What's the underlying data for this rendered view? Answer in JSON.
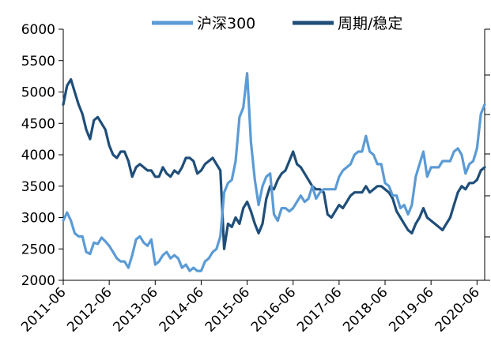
{
  "chart_data": {
    "type": "line",
    "title": "",
    "xlabel": "",
    "ylabel": "",
    "x_ticks": [
      "2011-06",
      "2012-06",
      "2013-06",
      "2014-06",
      "2015-06",
      "2016-06",
      "2017-06",
      "2018-06",
      "2019-06",
      "2020-06"
    ],
    "x_range": [
      "2011-06",
      "2020-08"
    ],
    "y_left": {
      "range": [
        2000,
        6000
      ],
      "ticks": [
        "6000",
        "5500",
        "5000",
        "4500",
        "4000",
        "3500",
        "3000",
        "2500",
        "2000"
      ]
    },
    "y_right": {
      "ticks_visible": false
    },
    "legend": {
      "position": "top"
    },
    "grid": false,
    "series": [
      {
        "name": "沪深300",
        "axis": "left",
        "color": "#5b9bd5",
        "points": [
          [
            "2011-06",
            2950
          ],
          [
            "2011-07",
            3080
          ],
          [
            "2011-08",
            2950
          ],
          [
            "2011-09",
            2750
          ],
          [
            "2011-10",
            2700
          ],
          [
            "2011-11",
            2700
          ],
          [
            "2011-12",
            2450
          ],
          [
            "2012-01",
            2420
          ],
          [
            "2012-02",
            2600
          ],
          [
            "2012-03",
            2580
          ],
          [
            "2012-04",
            2680
          ],
          [
            "2012-05",
            2620
          ],
          [
            "2012-06",
            2550
          ],
          [
            "2012-07",
            2450
          ],
          [
            "2012-08",
            2350
          ],
          [
            "2012-09",
            2300
          ],
          [
            "2012-10",
            2300
          ],
          [
            "2012-11",
            2200
          ],
          [
            "2012-12",
            2400
          ],
          [
            "2013-01",
            2650
          ],
          [
            "2013-02",
            2700
          ],
          [
            "2013-03",
            2600
          ],
          [
            "2013-04",
            2550
          ],
          [
            "2013-05",
            2650
          ],
          [
            "2013-06",
            2250
          ],
          [
            "2013-07",
            2300
          ],
          [
            "2013-08",
            2400
          ],
          [
            "2013-09",
            2450
          ],
          [
            "2013-10",
            2350
          ],
          [
            "2013-11",
            2400
          ],
          [
            "2013-12",
            2350
          ],
          [
            "2014-01",
            2200
          ],
          [
            "2014-02",
            2250
          ],
          [
            "2014-03",
            2150
          ],
          [
            "2014-04",
            2200
          ],
          [
            "2014-05",
            2150
          ],
          [
            "2014-06",
            2150
          ],
          [
            "2014-07",
            2300
          ],
          [
            "2014-08",
            2350
          ],
          [
            "2014-09",
            2450
          ],
          [
            "2014-10",
            2500
          ],
          [
            "2014-11",
            2700
          ],
          [
            "2014-12",
            3400
          ],
          [
            "2015-01",
            3550
          ],
          [
            "2015-02",
            3600
          ],
          [
            "2015-03",
            3900
          ],
          [
            "2015-04",
            4600
          ],
          [
            "2015-05",
            4750
          ],
          [
            "2015-06",
            5300
          ],
          [
            "2015-07",
            4200
          ],
          [
            "2015-08",
            3600
          ],
          [
            "2015-09",
            3200
          ],
          [
            "2015-10",
            3500
          ],
          [
            "2015-11",
            3650
          ],
          [
            "2015-12",
            3700
          ],
          [
            "2016-01",
            3050
          ],
          [
            "2016-02",
            2950
          ],
          [
            "2016-03",
            3150
          ],
          [
            "2016-04",
            3150
          ],
          [
            "2016-05",
            3100
          ],
          [
            "2016-06",
            3150
          ],
          [
            "2016-07",
            3250
          ],
          [
            "2016-08",
            3350
          ],
          [
            "2016-09",
            3250
          ],
          [
            "2016-10",
            3300
          ],
          [
            "2016-11",
            3500
          ],
          [
            "2016-12",
            3300
          ],
          [
            "2017-01",
            3400
          ],
          [
            "2017-02",
            3450
          ],
          [
            "2017-03",
            3450
          ],
          [
            "2017-04",
            3450
          ],
          [
            "2017-05",
            3450
          ],
          [
            "2017-06",
            3650
          ],
          [
            "2017-07",
            3750
          ],
          [
            "2017-08",
            3800
          ],
          [
            "2017-09",
            3850
          ],
          [
            "2017-10",
            4000
          ],
          [
            "2017-11",
            4050
          ],
          [
            "2017-12",
            4050
          ],
          [
            "2018-01",
            4300
          ],
          [
            "2018-02",
            4050
          ],
          [
            "2018-03",
            4000
          ],
          [
            "2018-04",
            3850
          ],
          [
            "2018-05",
            3850
          ],
          [
            "2018-06",
            3550
          ],
          [
            "2018-07",
            3500
          ],
          [
            "2018-08",
            3350
          ],
          [
            "2018-09",
            3350
          ],
          [
            "2018-10",
            3150
          ],
          [
            "2018-11",
            3200
          ],
          [
            "2018-12",
            3050
          ],
          [
            "2019-01",
            3200
          ],
          [
            "2019-02",
            3650
          ],
          [
            "2019-03",
            3850
          ],
          [
            "2019-04",
            4050
          ],
          [
            "2019-05",
            3650
          ],
          [
            "2019-06",
            3800
          ],
          [
            "2019-07",
            3800
          ],
          [
            "2019-08",
            3800
          ],
          [
            "2019-09",
            3900
          ],
          [
            "2019-10",
            3900
          ],
          [
            "2019-11",
            3900
          ],
          [
            "2019-12",
            4050
          ],
          [
            "2020-01",
            4100
          ],
          [
            "2020-02",
            4000
          ],
          [
            "2020-03",
            3700
          ],
          [
            "2020-04",
            3850
          ],
          [
            "2020-05",
            3900
          ],
          [
            "2020-06",
            4100
          ],
          [
            "2020-07",
            4650
          ],
          [
            "2020-08",
            4800
          ]
        ]
      },
      {
        "name": "周期/稳定",
        "axis": "right",
        "color": "#1f4e79",
        "points": [
          [
            "2011-06",
            4800
          ],
          [
            "2011-07",
            5100
          ],
          [
            "2011-08",
            5200
          ],
          [
            "2011-09",
            5000
          ],
          [
            "2011-10",
            4800
          ],
          [
            "2011-11",
            4650
          ],
          [
            "2011-12",
            4400
          ],
          [
            "2012-01",
            4250
          ],
          [
            "2012-02",
            4550
          ],
          [
            "2012-03",
            4600
          ],
          [
            "2012-04",
            4500
          ],
          [
            "2012-05",
            4400
          ],
          [
            "2012-06",
            4150
          ],
          [
            "2012-07",
            4000
          ],
          [
            "2012-08",
            3950
          ],
          [
            "2012-09",
            4050
          ],
          [
            "2012-10",
            4050
          ],
          [
            "2012-11",
            3900
          ],
          [
            "2012-12",
            3650
          ],
          [
            "2013-01",
            3800
          ],
          [
            "2013-02",
            3850
          ],
          [
            "2013-03",
            3800
          ],
          [
            "2013-04",
            3750
          ],
          [
            "2013-05",
            3750
          ],
          [
            "2013-06",
            3650
          ],
          [
            "2013-07",
            3650
          ],
          [
            "2013-08",
            3800
          ],
          [
            "2013-09",
            3700
          ],
          [
            "2013-10",
            3650
          ],
          [
            "2013-11",
            3750
          ],
          [
            "2013-12",
            3700
          ],
          [
            "2014-01",
            3800
          ],
          [
            "2014-02",
            3950
          ],
          [
            "2014-03",
            3950
          ],
          [
            "2014-04",
            3900
          ],
          [
            "2014-05",
            3700
          ],
          [
            "2014-06",
            3750
          ],
          [
            "2014-07",
            3850
          ],
          [
            "2014-08",
            3900
          ],
          [
            "2014-09",
            3950
          ],
          [
            "2014-10",
            3850
          ],
          [
            "2014-11",
            3750
          ],
          [
            "2014-12",
            2500
          ],
          [
            "2015-01",
            2900
          ],
          [
            "2015-02",
            2850
          ],
          [
            "2015-03",
            3000
          ],
          [
            "2015-04",
            2900
          ],
          [
            "2015-05",
            3150
          ],
          [
            "2015-06",
            3250
          ],
          [
            "2015-07",
            3100
          ],
          [
            "2015-08",
            2900
          ],
          [
            "2015-09",
            2750
          ],
          [
            "2015-10",
            2900
          ],
          [
            "2015-11",
            3300
          ],
          [
            "2015-12",
            3500
          ],
          [
            "2016-01",
            3450
          ],
          [
            "2016-02",
            3600
          ],
          [
            "2016-03",
            3700
          ],
          [
            "2016-04",
            3750
          ],
          [
            "2016-05",
            3900
          ],
          [
            "2016-06",
            4050
          ],
          [
            "2016-07",
            3850
          ],
          [
            "2016-08",
            3800
          ],
          [
            "2016-09",
            3700
          ],
          [
            "2016-10",
            3600
          ],
          [
            "2016-11",
            3500
          ],
          [
            "2016-12",
            3450
          ],
          [
            "2017-01",
            3450
          ],
          [
            "2017-02",
            3400
          ],
          [
            "2017-03",
            3050
          ],
          [
            "2017-04",
            3000
          ],
          [
            "2017-05",
            3100
          ],
          [
            "2017-06",
            3200
          ],
          [
            "2017-07",
            3150
          ],
          [
            "2017-08",
            3250
          ],
          [
            "2017-09",
            3350
          ],
          [
            "2017-10",
            3400
          ],
          [
            "2017-11",
            3400
          ],
          [
            "2017-12",
            3400
          ],
          [
            "2018-01",
            3500
          ],
          [
            "2018-02",
            3400
          ],
          [
            "2018-03",
            3450
          ],
          [
            "2018-04",
            3500
          ],
          [
            "2018-05",
            3500
          ],
          [
            "2018-06",
            3450
          ],
          [
            "2018-07",
            3400
          ],
          [
            "2018-08",
            3300
          ],
          [
            "2018-09",
            3100
          ],
          [
            "2018-10",
            3000
          ],
          [
            "2018-11",
            2900
          ],
          [
            "2018-12",
            2800
          ],
          [
            "2019-01",
            2750
          ],
          [
            "2019-02",
            2900
          ],
          [
            "2019-03",
            3000
          ],
          [
            "2019-04",
            3150
          ],
          [
            "2019-05",
            3000
          ],
          [
            "2019-06",
            2950
          ],
          [
            "2019-07",
            2900
          ],
          [
            "2019-08",
            2850
          ],
          [
            "2019-09",
            2800
          ],
          [
            "2019-10",
            2900
          ],
          [
            "2019-11",
            3000
          ],
          [
            "2019-12",
            3200
          ],
          [
            "2020-01",
            3400
          ],
          [
            "2020-02",
            3500
          ],
          [
            "2020-03",
            3450
          ],
          [
            "2020-04",
            3550
          ],
          [
            "2020-05",
            3550
          ],
          [
            "2020-06",
            3600
          ],
          [
            "2020-07",
            3750
          ],
          [
            "2020-08",
            3800
          ]
        ]
      }
    ]
  }
}
